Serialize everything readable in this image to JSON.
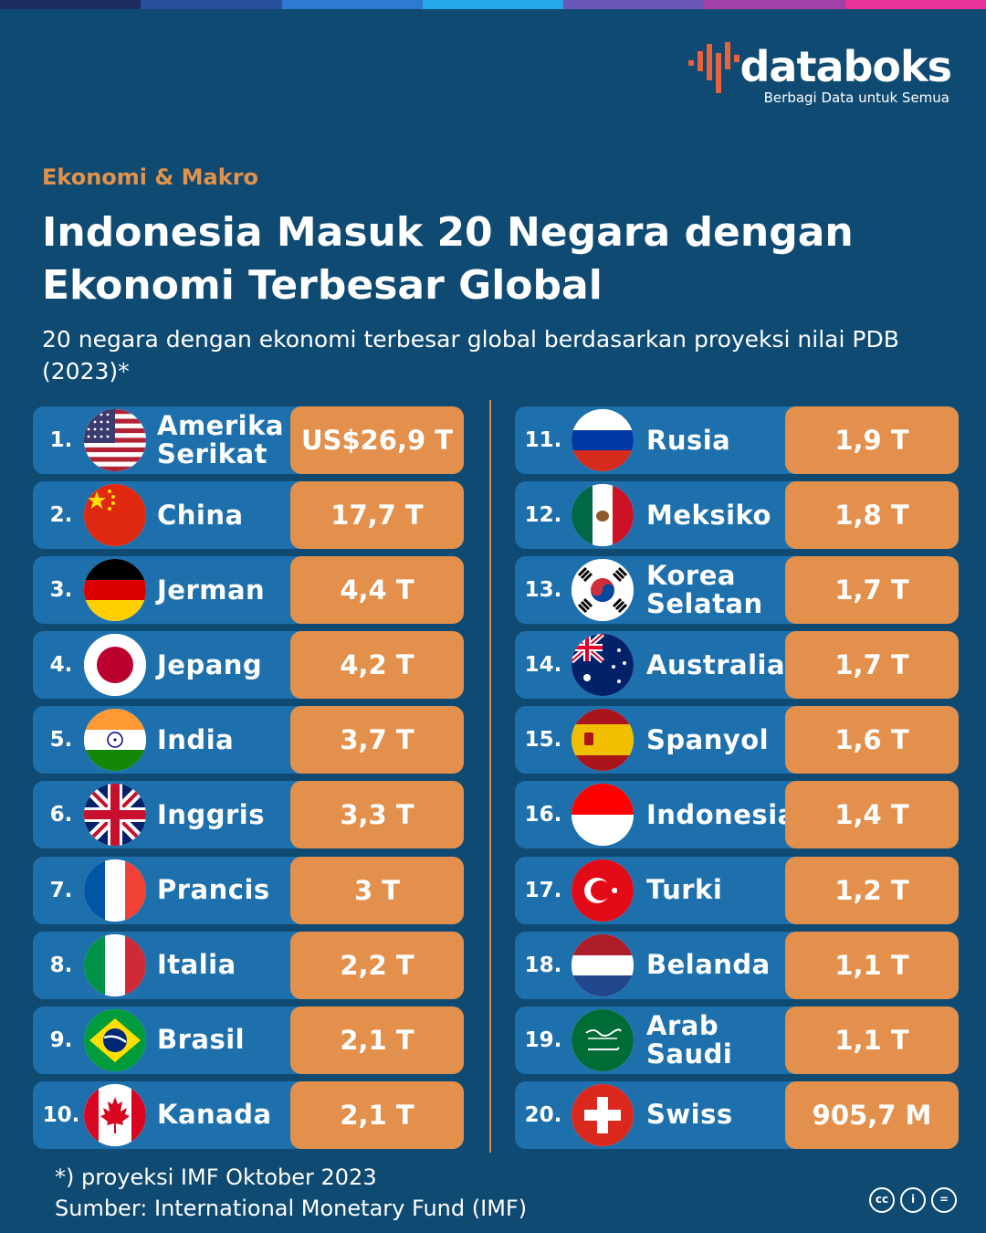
{
  "brand": {
    "name": "databoks",
    "tagline": "Berbagi Data untuk Semua"
  },
  "category": "Ekonomi & Makro",
  "title": "Indonesia Masuk 20 Negara dengan Ekonomi Terbesar Global",
  "subtitle": "20 negara dengan ekonomi terbesar global berdasarkan proyeksi nilai PDB (2023)*",
  "colors": {
    "background": "#0e4a72",
    "row": "#1e70ad",
    "value_box": "#e2904c",
    "accent": "#e3924a"
  },
  "chart_data": {
    "type": "table",
    "columns": [
      "rank",
      "country",
      "gdp"
    ],
    "rows": [
      {
        "rank": "1.",
        "country": "Amerika\nSerikat",
        "value": "US$26,9 T",
        "flag": "usa-flag-icon"
      },
      {
        "rank": "2.",
        "country": "China",
        "value": "17,7 T",
        "flag": "china-flag-icon"
      },
      {
        "rank": "3.",
        "country": "Jerman",
        "value": "4,4 T",
        "flag": "germany-flag-icon"
      },
      {
        "rank": "4.",
        "country": "Jepang",
        "value": "4,2 T",
        "flag": "japan-flag-icon"
      },
      {
        "rank": "5.",
        "country": "India",
        "value": "3,7 T",
        "flag": "india-flag-icon"
      },
      {
        "rank": "6.",
        "country": "Inggris",
        "value": "3,3 T",
        "flag": "uk-flag-icon"
      },
      {
        "rank": "7.",
        "country": "Prancis",
        "value": "3 T",
        "flag": "france-flag-icon"
      },
      {
        "rank": "8.",
        "country": "Italia",
        "value": "2,2 T",
        "flag": "italy-flag-icon"
      },
      {
        "rank": "9.",
        "country": "Brasil",
        "value": "2,1 T",
        "flag": "brazil-flag-icon"
      },
      {
        "rank": "10.",
        "country": "Kanada",
        "value": "2,1 T",
        "flag": "canada-flag-icon"
      },
      {
        "rank": "11.",
        "country": "Rusia",
        "value": "1,9 T",
        "flag": "russia-flag-icon"
      },
      {
        "rank": "12.",
        "country": "Meksiko",
        "value": "1,8 T",
        "flag": "mexico-flag-icon"
      },
      {
        "rank": "13.",
        "country": "Korea\nSelatan",
        "value": "1,7 T",
        "flag": "south-korea-flag-icon"
      },
      {
        "rank": "14.",
        "country": "Australia",
        "value": "1,7 T",
        "flag": "australia-flag-icon"
      },
      {
        "rank": "15.",
        "country": "Spanyol",
        "value": "1,6 T",
        "flag": "spain-flag-icon"
      },
      {
        "rank": "16.",
        "country": "Indonesia",
        "value": "1,4 T",
        "flag": "indonesia-flag-icon"
      },
      {
        "rank": "17.",
        "country": "Turki",
        "value": "1,2 T",
        "flag": "turkey-flag-icon"
      },
      {
        "rank": "18.",
        "country": "Belanda",
        "value": "1,1 T",
        "flag": "netherlands-flag-icon"
      },
      {
        "rank": "19.",
        "country": "Arab\nSaudi",
        "value": "1,1 T",
        "flag": "saudi-arabia-flag-icon"
      },
      {
        "rank": "20.",
        "country": "Swiss",
        "value": "905,7 M",
        "flag": "switzerland-flag-icon"
      }
    ]
  },
  "footer": {
    "note": "*) proyeksi IMF Oktober 2023",
    "source": "Sumber: International Monetary Fund (IMF)"
  },
  "license_icons": [
    "cc-icon",
    "attribution-icon",
    "no-derivatives-icon"
  ]
}
